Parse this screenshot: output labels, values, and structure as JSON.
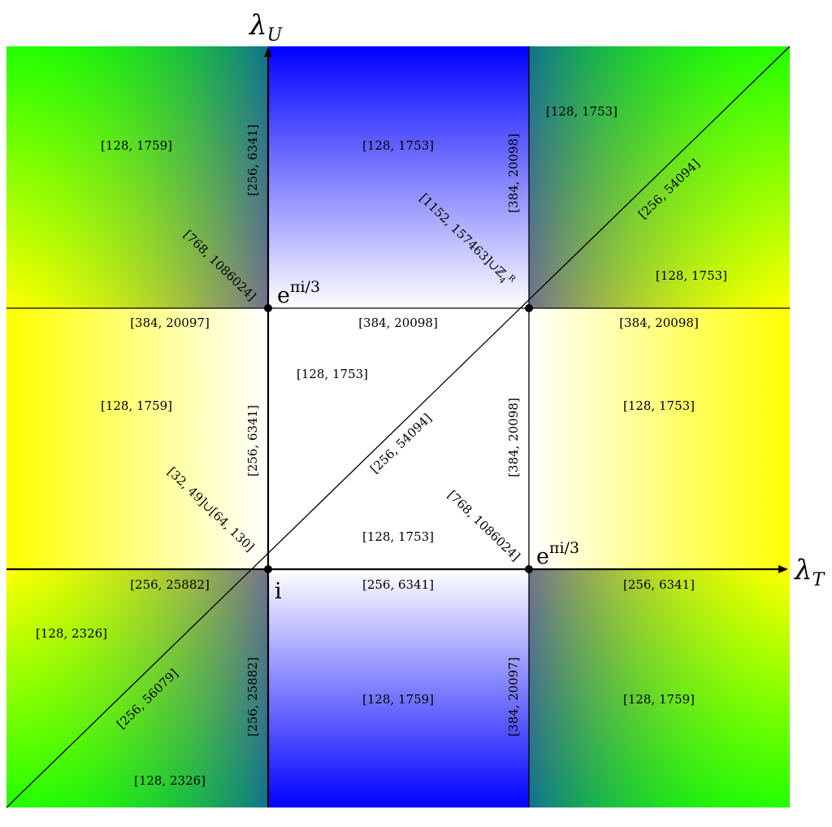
{
  "axes": {
    "x_name": "λ",
    "x_sub": "T",
    "y_name": "λ",
    "y_sub": "U"
  },
  "points": {
    "i": "i",
    "rho_top": {
      "base": "e",
      "exp": "πi/3"
    },
    "rho_right": {
      "base": "e",
      "exp": "πi/3"
    }
  },
  "regions": {
    "top_left": "[128, 1759]",
    "top_mid": "[128, 1753]",
    "top_right_upper": "[128, 1753]",
    "top_right_lower": "[128, 1753]",
    "mid_left": "[128, 1759]",
    "center_upper_left": "[128, 1753]",
    "center_lower": "[128, 1753]",
    "mid_right": "[128, 1753]",
    "bottom_left_upper": "[128, 2326]",
    "bottom_left_lower": "[128, 2326]",
    "bottom_mid": "[128, 1759]",
    "bottom_right": "[128, 1759]"
  },
  "edges": {
    "top_edge_left": "[384, 20097]",
    "top_edge_mid": "[384, 20098]",
    "top_edge_right": "[384, 20098]",
    "bottom_edge_left": "[256, 25882]",
    "bottom_edge_mid": "[256, 6341]",
    "bottom_edge_right": "[256, 6341]",
    "left_vertical_top": "[256, 6341]",
    "left_vertical_mid": "[256, 6341]",
    "left_vertical_bottom": "[256, 25882]",
    "right_vertical_top": "[384, 20098]",
    "right_vertical_mid": "[384, 20098]",
    "right_vertical_bottom": "[384, 20097]",
    "diag_upper_right": "[256, 54094]",
    "diag_center": "[256, 54094]",
    "diag_lower_left": "[256, 56079]",
    "top_left_corner": "[768, 1086024]",
    "right_corner": "[768, 1086024]",
    "bottom_left_corner_a": "[32, 49]",
    "bottom_left_corner_cup": "∪",
    "bottom_left_corner_b": "[64, 130]",
    "top_right_corner_a": "[1152, 157463]",
    "top_right_corner_cup": "∪",
    "top_right_corner_z": "ℤ",
    "top_right_corner_sub": "4",
    "top_right_corner_sup": "R"
  },
  "colors": {
    "blue": "#0000ff",
    "yellow": "#ffff00",
    "green": "#22ff00",
    "white": "#ffffff",
    "line": "#000000"
  }
}
